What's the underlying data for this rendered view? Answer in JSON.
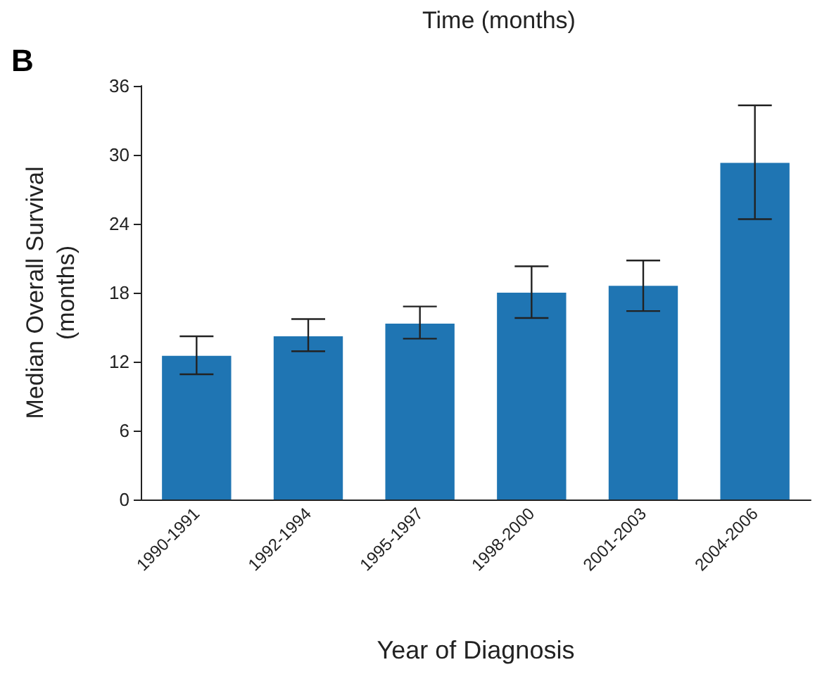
{
  "chart_data": {
    "type": "bar",
    "xlabel": "Year of Diagnosis",
    "ylabel": "Median Overall Survival\n(months)",
    "annotations": [
      "B",
      "Time (months)"
    ],
    "categories": [
      "1990-1991",
      "1992-1994",
      "1995-1997",
      "1998-2000",
      "2001-2003",
      "2004-2006"
    ],
    "values": [
      12.5,
      14.2,
      15.3,
      18.0,
      18.6,
      29.3
    ],
    "errors": [
      [
        10.9,
        14.2
      ],
      [
        12.9,
        15.7
      ],
      [
        14.0,
        16.8
      ],
      [
        15.8,
        20.3
      ],
      [
        16.4,
        20.8
      ],
      [
        24.4,
        34.3
      ]
    ],
    "color": "#1f75b3",
    "ylim": [
      0,
      36
    ],
    "yticks": [
      0,
      6,
      12,
      18,
      24,
      30,
      36
    ],
    "grid": false
  }
}
